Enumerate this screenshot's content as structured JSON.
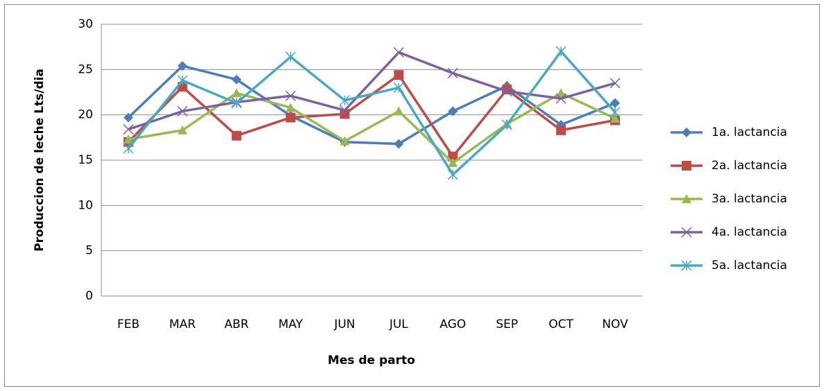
{
  "chart_data": {
    "type": "line",
    "x_label": "Mes de parto",
    "y_label": "Produccion de leche Lts/dia",
    "categories": [
      "FEB",
      "MAR",
      "ABR",
      "MAY",
      "JUN",
      "JUL",
      "AGO",
      "SEP",
      "OCT",
      "NOV"
    ],
    "series": [
      {
        "name": "1a. lactancia",
        "color": "#4a7ebb",
        "marker": "diamond",
        "values": [
          19.7,
          25.4,
          23.9,
          19.9,
          17.0,
          16.8,
          20.4,
          23.2,
          18.9,
          21.3
        ]
      },
      {
        "name": "2a. lactancia",
        "color": "#be4b48",
        "marker": "square",
        "values": [
          17.0,
          23.1,
          17.7,
          19.7,
          20.1,
          24.4,
          15.4,
          22.8,
          18.3,
          19.4
        ]
      },
      {
        "name": "3a. lactancia",
        "color": "#98b954",
        "marker": "triangle",
        "values": [
          17.3,
          18.3,
          22.4,
          20.8,
          17.1,
          20.4,
          14.7,
          19.0,
          22.4,
          19.6
        ]
      },
      {
        "name": "4a. lactancia",
        "color": "#7d60a0",
        "marker": "x",
        "values": [
          18.4,
          20.4,
          21.4,
          22.1,
          20.5,
          26.9,
          24.6,
          22.6,
          21.8,
          23.5
        ]
      },
      {
        "name": "5a. lactancia",
        "color": "#46aac5",
        "marker": "star",
        "values": [
          16.3,
          23.8,
          21.3,
          26.4,
          21.6,
          23.0,
          13.4,
          18.9,
          27.0,
          20.3
        ]
      }
    ],
    "ylim": [
      0,
      30
    ],
    "yticks": [
      0,
      5,
      10,
      15,
      20,
      25,
      30
    ],
    "grid": true,
    "legend": "right"
  }
}
